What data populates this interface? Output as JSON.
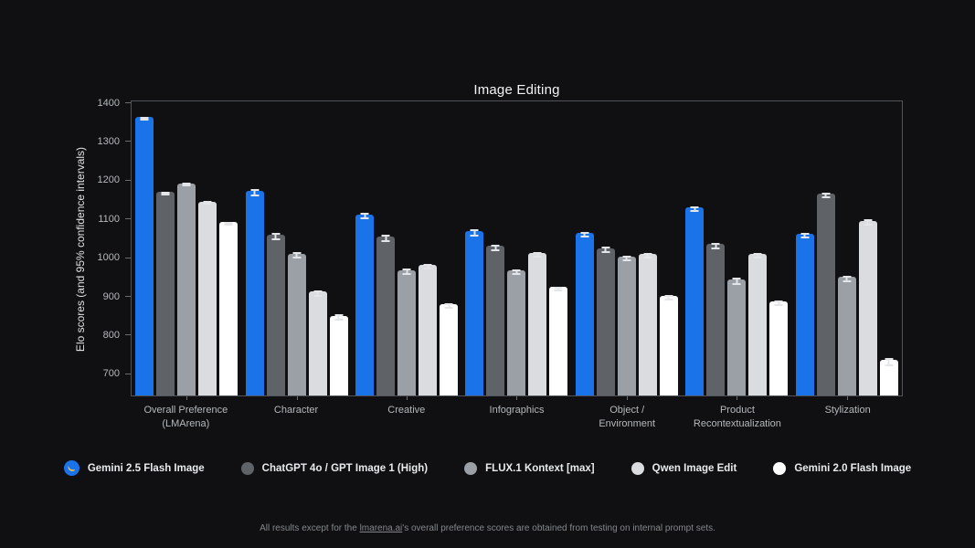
{
  "chart_data": {
    "type": "bar",
    "title": "Image Editing",
    "ylabel": "Elo scores (and 95% confidence intervals)",
    "ylim": [
      642,
      1406
    ],
    "yticks": [
      700,
      800,
      900,
      1000,
      1100,
      1200,
      1300,
      1400
    ],
    "grid": false,
    "legend_position": "bottom",
    "error_bars": "95% confidence intervals",
    "categories": [
      "Overall Preference\n(LMArena)",
      "Character",
      "Creative",
      "Infographics",
      "Object /\nEnvironment",
      "Product\nRecontextualization",
      "Stylization"
    ],
    "series": [
      {
        "name": "Gemini 2.5 Flash Image",
        "color": "#1a73e8",
        "marker": "banana-in-blue-circle",
        "values": [
          1362,
          1170,
          1110,
          1066,
          1062,
          1128,
          1060
        ],
        "errors": [
          5,
          10,
          9,
          9,
          8,
          8,
          7
        ]
      },
      {
        "name": "ChatGPT 4o / GPT Image 1 (High)",
        "color": "#5f6368",
        "marker": "circle",
        "values": [
          1168,
          1057,
          1053,
          1028,
          1022,
          1033,
          1163
        ],
        "errors": [
          5,
          9,
          9,
          8,
          8,
          8,
          8
        ]
      },
      {
        "name": "FLUX.1 Kontext [max]",
        "color": "#9aa0a6",
        "marker": "circle",
        "values": [
          1190,
          1008,
          966,
          965,
          1000,
          942,
          948
        ],
        "errors": [
          4,
          8,
          8,
          8,
          7,
          9,
          8
        ]
      },
      {
        "name": "Qwen Image Edit",
        "color": "#dadce0",
        "marker": "circle",
        "values": [
          1143,
          910,
          980,
          1010,
          1008,
          1008,
          1093
        ],
        "errors": [
          4,
          8,
          7,
          8,
          7,
          7,
          8
        ]
      },
      {
        "name": "Gemini 2.0 Flash Image",
        "color": "#ffffff",
        "marker": "circle",
        "values": [
          1090,
          848,
          878,
          922,
          900,
          885,
          733
        ],
        "errors": [
          5,
          8,
          6,
          6,
          7,
          8,
          10
        ]
      }
    ]
  },
  "footer": {
    "prefix": "All results except for the ",
    "link": "lmarena.ai",
    "suffix": "'s overall preference scores are obtained from testing on internal prompt sets."
  }
}
